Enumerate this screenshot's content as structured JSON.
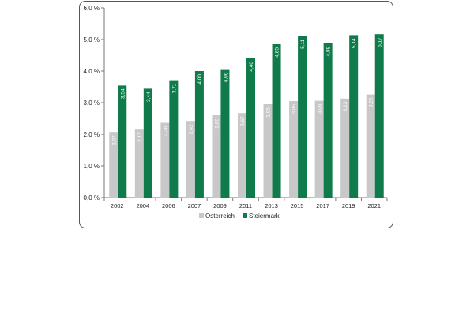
{
  "chart_data": {
    "type": "bar",
    "categories": [
      "2002",
      "2004",
      "2006",
      "2007",
      "2009",
      "2011",
      "2013",
      "2015",
      "2017",
      "2019",
      "2021"
    ],
    "series": [
      {
        "name": "Österreich",
        "values": [
          2.07,
          2.17,
          2.36,
          2.42,
          2.6,
          2.67,
          2.95,
          3.05,
          3.06,
          3.13,
          3.26
        ],
        "labels": [
          "2,07",
          "2,17",
          "2,36",
          "2,42",
          "2,60",
          "2,67",
          "2,95",
          "3,05",
          "3,06",
          "3,13",
          "3,26"
        ],
        "color": "#c8c8c8"
      },
      {
        "name": "Steiermark",
        "values": [
          3.54,
          3.44,
          3.71,
          4.0,
          4.06,
          4.4,
          4.85,
          5.11,
          4.88,
          5.14,
          5.17
        ],
        "labels": [
          "3,54",
          "3,44",
          "3,71",
          "4,00",
          "4,06",
          "4,40",
          "4,85",
          "5,11",
          "4,88",
          "5,14",
          "5,17"
        ],
        "color": "#0f7b4a"
      }
    ],
    "ylim": [
      0,
      6
    ],
    "yticks": [
      {
        "value": 0,
        "label": "0,0 %"
      },
      {
        "value": 1,
        "label": "1,0 %"
      },
      {
        "value": 2,
        "label": "2,0 %"
      },
      {
        "value": 3,
        "label": "3,0 %"
      },
      {
        "value": 4,
        "label": "4,0 %"
      },
      {
        "value": 5,
        "label": "5,0 %"
      },
      {
        "value": 6,
        "label": "6,0 %"
      }
    ],
    "grid": false,
    "legend_placement": "bottom"
  }
}
